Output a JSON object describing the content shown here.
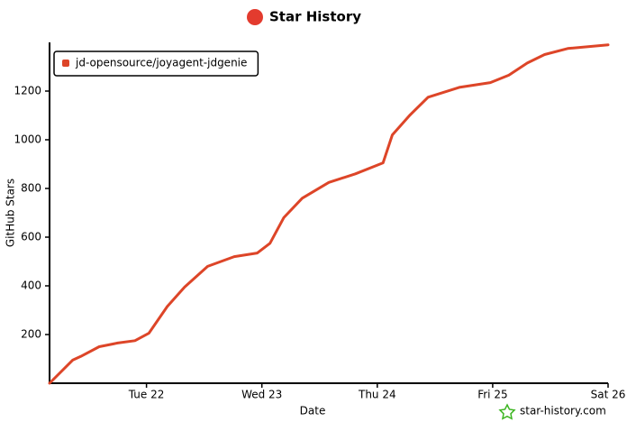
{
  "chart_data": {
    "type": "line",
    "title": "Star History",
    "x_label": "Date",
    "y_label": "GitHub Stars",
    "watermark": "star-history.com",
    "x": [
      21.16,
      21.36,
      21.43,
      21.59,
      21.75,
      21.9,
      22.02,
      22.18,
      22.33,
      22.53,
      22.76,
      22.96,
      23.07,
      23.19,
      23.35,
      23.58,
      23.81,
      24.05,
      24.13,
      24.28,
      24.44,
      24.71,
      24.98,
      25.14,
      25.3,
      25.45,
      25.65,
      26.0
    ],
    "series": [
      {
        "name": "jd-opensource/joyagent-jdgenie",
        "color": "#dd4528",
        "values": [
          0,
          95,
          110,
          150,
          165,
          175,
          205,
          315,
          395,
          480,
          520,
          535,
          575,
          680,
          760,
          825,
          860,
          905,
          1020,
          1100,
          1175,
          1215,
          1235,
          1265,
          1315,
          1350,
          1375,
          1390
        ]
      }
    ],
    "xlim": [
      21.16,
      26.0
    ],
    "xticks": [
      {
        "value": 22,
        "label": "Tue 22"
      },
      {
        "value": 23,
        "label": "Wed 23"
      },
      {
        "value": 24,
        "label": "Thu 24"
      },
      {
        "value": 25,
        "label": "Fri 25"
      },
      {
        "value": 26,
        "label": "Sat 26"
      }
    ],
    "ylim": [
      0,
      1400
    ],
    "yticks": [
      200,
      400,
      600,
      800,
      1000,
      1200
    ],
    "grid": false,
    "legend": "top-left"
  }
}
